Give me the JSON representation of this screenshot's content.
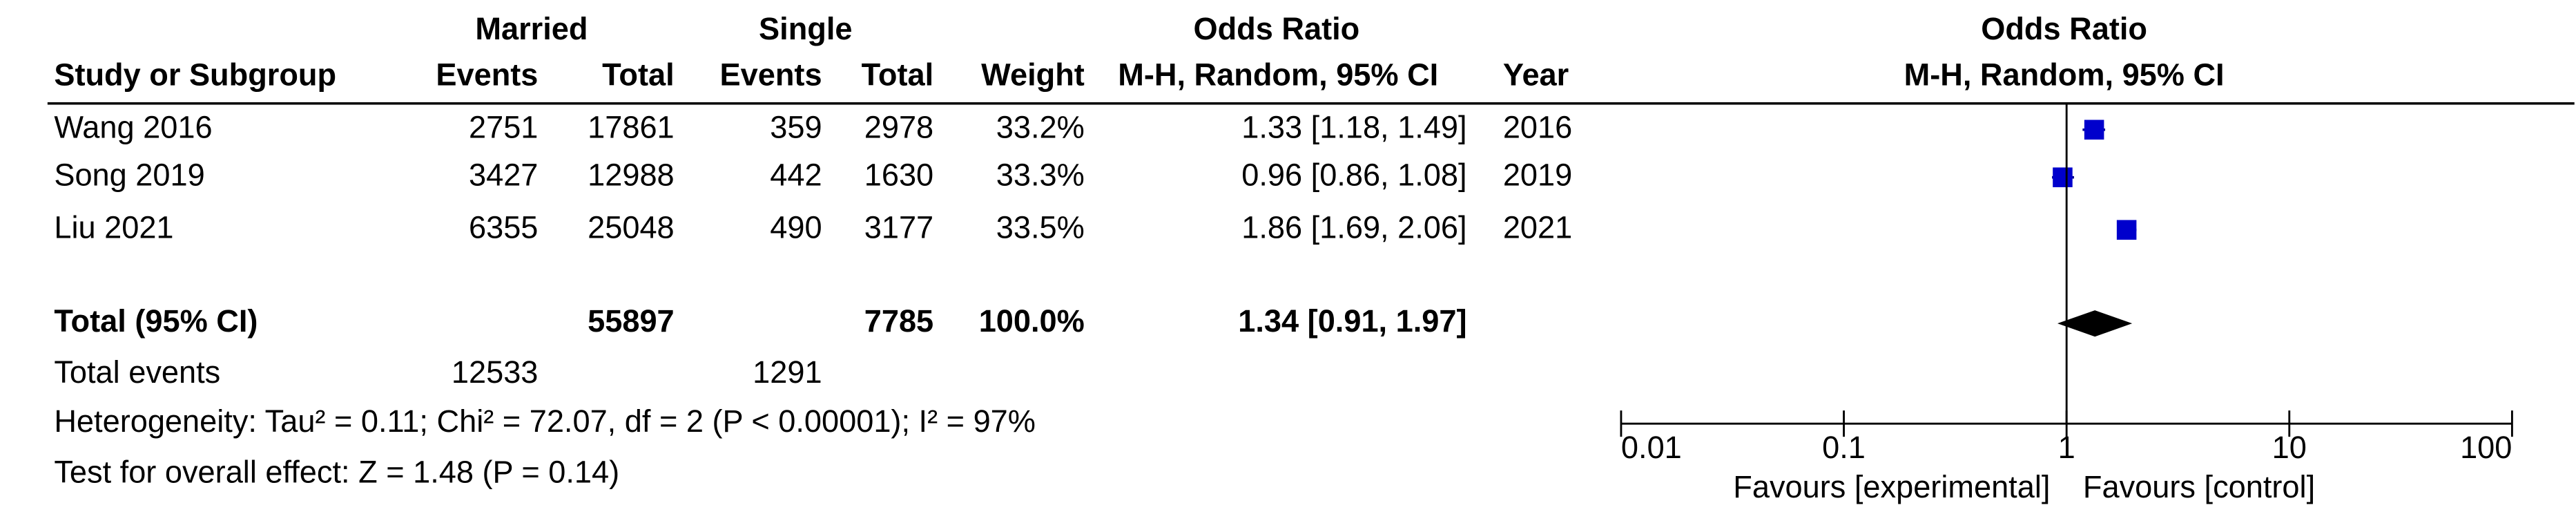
{
  "header": {
    "group1": "Married",
    "group2": "Single",
    "effect_table": "Odds Ratio",
    "effect_plot": "Odds Ratio",
    "study": "Study or Subgroup",
    "events1": "Events",
    "total1": "Total",
    "events2": "Events",
    "total2": "Total",
    "weight": "Weight",
    "method_table": "M-H, Random, 95% CI",
    "year": "Year",
    "method_plot": "M-H, Random, 95% CI"
  },
  "studies": [
    {
      "name": "Wang 2016",
      "events1": 2751,
      "total1": 17861,
      "events2": 359,
      "total2": 2978,
      "weight": "33.2%",
      "ci_label": "1.33 [1.18, 1.49]",
      "year": 2016,
      "or": 1.33,
      "ci_low": 1.18,
      "ci_high": 1.49
    },
    {
      "name": "Song 2019",
      "events1": 3427,
      "total1": 12988,
      "events2": 442,
      "total2": 1630,
      "weight": "33.3%",
      "ci_label": "0.96 [0.86, 1.08]",
      "year": 2019,
      "or": 0.96,
      "ci_low": 0.86,
      "ci_high": 1.08
    },
    {
      "name": "Liu 2021",
      "events1": 6355,
      "total1": 25048,
      "events2": 490,
      "total2": 3177,
      "weight": "33.5%",
      "ci_label": "1.86 [1.69, 2.06]",
      "year": 2021,
      "or": 1.86,
      "ci_low": 1.69,
      "ci_high": 2.06
    }
  ],
  "total": {
    "name": "Total (95% CI)",
    "total1": 55897,
    "total2": 7785,
    "weight": "100.0%",
    "ci_label": "1.34 [0.91, 1.97]",
    "or": 1.34,
    "ci_low": 0.91,
    "ci_high": 1.97
  },
  "total_events": {
    "label": "Total events",
    "events1": 12533,
    "events2": 1291
  },
  "heterogeneity": "Heterogeneity: Tau² = 0.11; Chi² = 72.07, df = 2 (P < 0.00001); I² = 97%",
  "overall_effect": "Test for overall effect: Z = 1.48 (P = 0.14)",
  "axis": {
    "scale": "log",
    "xlim": [
      0.01,
      100
    ],
    "xticks": [
      0.01,
      0.1,
      1,
      10,
      100
    ],
    "favours_left": "Favours [experimental]",
    "favours_right": "Favours [control]"
  }
}
